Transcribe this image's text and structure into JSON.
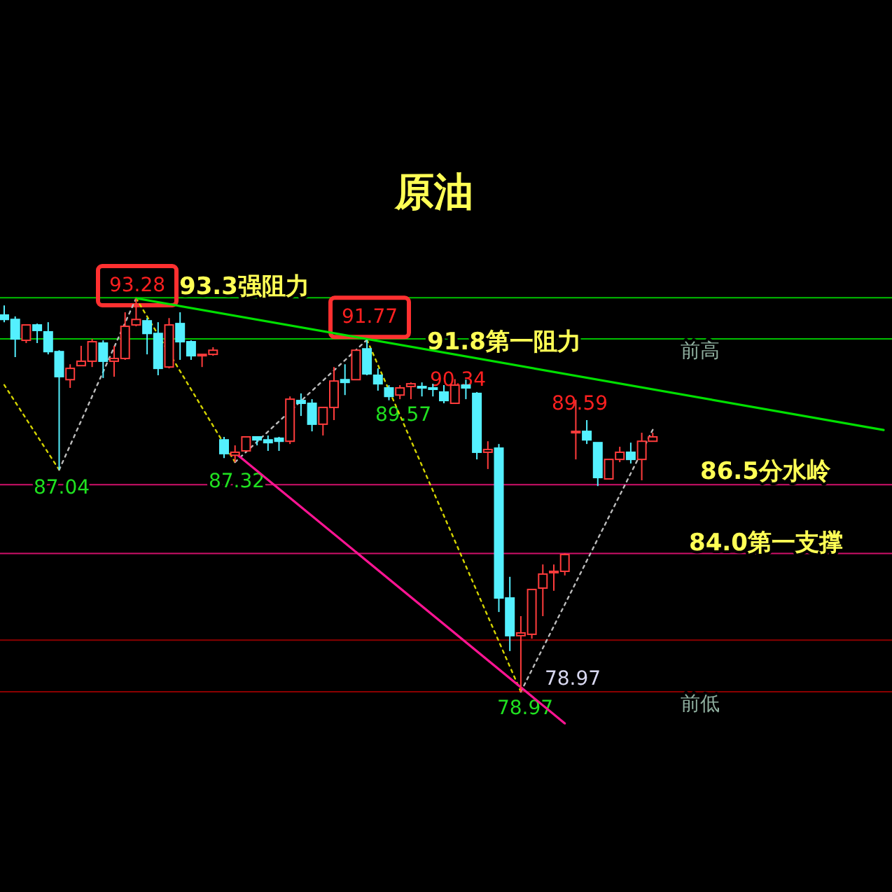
{
  "chart_data": {
    "type": "candlestick",
    "title": "原油",
    "categories": [
      null,
      null,
      null,
      null,
      null,
      null,
      null,
      null,
      null,
      null,
      null,
      null,
      null,
      null,
      null,
      null,
      null,
      null,
      null,
      null,
      null,
      null,
      null,
      null,
      null,
      null,
      null,
      null,
      null,
      null,
      null,
      null,
      null,
      null,
      null,
      null,
      null,
      null,
      null,
      null,
      null,
      null,
      null,
      null,
      null,
      null,
      null,
      null,
      null,
      null,
      null,
      null,
      null,
      null,
      null,
      null,
      null,
      null,
      null,
      null,
      null,
      null,
      null,
      null,
      null,
      null,
      null,
      null,
      null,
      null,
      null,
      null,
      null,
      null,
      null,
      null,
      null,
      null,
      null,
      null,
      null
    ],
    "ohlc": [
      [
        92.67,
        93.02,
        92.41,
        92.51
      ],
      [
        92.51,
        92.62,
        91.14,
        91.8
      ],
      [
        91.75,
        92.31,
        91.65,
        92.31
      ],
      [
        92.31,
        92.36,
        91.65,
        92.11
      ],
      [
        92.06,
        92.41,
        91.24,
        91.34
      ],
      [
        91.34,
        91.39,
        87.04,
        90.43
      ],
      [
        90.32,
        90.88,
        90.02,
        90.73
      ],
      [
        90.83,
        91.55,
        90.83,
        90.99
      ],
      [
        90.99,
        91.8,
        90.78,
        91.7
      ],
      [
        91.65,
        91.75,
        90.38,
        90.99
      ],
      [
        90.99,
        91.55,
        90.43,
        91.09
      ],
      [
        91.09,
        92.77,
        91.04,
        92.26
      ],
      [
        92.31,
        93.28,
        92.26,
        92.51
      ],
      [
        92.46,
        92.56,
        91.24,
        92.0
      ],
      [
        92.0,
        92.41,
        90.48,
        90.73
      ],
      [
        90.78,
        92.56,
        90.73,
        92.31
      ],
      [
        92.36,
        92.77,
        91.04,
        91.7
      ],
      [
        91.7,
        91.75,
        91.04,
        91.19
      ],
      [
        91.19,
        91.24,
        90.78,
        91.24
      ],
      [
        91.24,
        91.5,
        91.19,
        91.39
      ],
      [
        88.13,
        88.24,
        87.47,
        87.63
      ],
      [
        87.57,
        87.93,
        87.32,
        87.68
      ],
      [
        87.73,
        88.24,
        87.73,
        88.24
      ],
      [
        88.24,
        88.24,
        87.93,
        88.13
      ],
      [
        88.13,
        88.29,
        87.73,
        88.03
      ],
      [
        88.19,
        88.24,
        87.73,
        88.08
      ],
      [
        88.08,
        89.71,
        87.98,
        89.61
      ],
      [
        89.56,
        89.82,
        89.0,
        89.46
      ],
      [
        89.46,
        89.61,
        88.44,
        88.7
      ],
      [
        88.7,
        89.31,
        88.29,
        89.31
      ],
      [
        89.31,
        90.78,
        88.85,
        90.27
      ],
      [
        90.32,
        90.88,
        89.76,
        90.22
      ],
      [
        90.32,
        91.39,
        90.32,
        91.39
      ],
      [
        91.44,
        91.77,
        90.48,
        90.53
      ],
      [
        90.48,
        90.73,
        89.92,
        90.17
      ],
      [
        90.02,
        90.12,
        89.57,
        89.71
      ],
      [
        89.76,
        90.12,
        89.61,
        90.02
      ],
      [
        90.07,
        90.22,
        89.61,
        90.17
      ],
      [
        90.07,
        90.22,
        89.71,
        90.02
      ],
      [
        90.02,
        90.17,
        89.71,
        89.97
      ],
      [
        89.87,
        90.12,
        89.46,
        89.56
      ],
      [
        89.46,
        90.34,
        89.46,
        90.12
      ],
      [
        90.12,
        90.32,
        89.61,
        90.02
      ],
      [
        89.82,
        89.87,
        87.42,
        87.68
      ],
      [
        87.68,
        88.08,
        87.07,
        87.78
      ],
      [
        87.83,
        87.98,
        81.87,
        82.38
      ],
      [
        82.38,
        83.15,
        80.45,
        81.01
      ],
      [
        81.01,
        81.72,
        78.97,
        81.11
      ],
      [
        81.06,
        82.69,
        80.9,
        82.69
      ],
      [
        82.74,
        83.6,
        81.72,
        83.25
      ],
      [
        83.3,
        83.6,
        82.64,
        83.35
      ],
      [
        83.35,
        84.01,
        83.2,
        83.96
      ],
      [
        88.39,
        89.59,
        87.42,
        88.44
      ],
      [
        88.44,
        88.85,
        87.98,
        88.13
      ],
      [
        88.03,
        88.03,
        86.45,
        86.76
      ],
      [
        86.71,
        87.42,
        86.71,
        87.42
      ],
      [
        87.42,
        87.88,
        87.32,
        87.68
      ],
      [
        87.68,
        88.03,
        87.27,
        87.42
      ],
      [
        87.42,
        88.39,
        86.66,
        88.08
      ],
      [
        88.08,
        88.39,
        88.08,
        88.24
      ],
      null,
      null,
      null,
      null,
      null,
      null,
      null,
      null,
      null,
      null,
      null,
      null,
      null,
      null,
      null,
      null,
      null,
      null,
      null,
      null,
      null
    ],
    "series": [
      {
        "type": "line",
        "color": "#d4d400",
        "line_style": "dotted",
        "values": [
          90.13,
          null,
          null,
          null,
          null,
          87.04,
          null,
          null,
          null,
          null,
          null,
          null,
          null,
          null,
          null,
          null,
          null,
          null,
          null,
          null,
          null,
          null,
          null,
          null,
          null,
          null,
          null,
          null,
          null,
          null,
          null,
          null,
          null,
          null,
          null,
          null,
          null,
          null,
          null,
          null,
          null,
          null,
          null,
          null,
          null,
          null,
          null,
          null,
          null,
          null,
          null,
          null,
          null,
          null,
          null,
          null,
          null,
          null,
          null,
          null,
          null,
          null,
          null,
          null,
          null,
          null,
          null,
          null,
          null,
          null,
          null,
          null,
          null,
          null,
          null,
          null,
          null,
          null,
          null,
          null,
          null
        ]
      },
      {
        "type": "line",
        "color": "#bbbbbb",
        "line_style": "dotted",
        "values": [
          null,
          null,
          null,
          null,
          null,
          87.04,
          null,
          null,
          null,
          null,
          null,
          null,
          93.28,
          null,
          null,
          null,
          null,
          null,
          null,
          null,
          null,
          null,
          null,
          null,
          null,
          null,
          null,
          null,
          null,
          null,
          null,
          null,
          null,
          null,
          null,
          null,
          null,
          null,
          null,
          null,
          null,
          null,
          null,
          null,
          null,
          null,
          null,
          null,
          null,
          null,
          null,
          null,
          null,
          null,
          null,
          null,
          null,
          null,
          null,
          null,
          null,
          null,
          null,
          null,
          null,
          null,
          null,
          null,
          null,
          null,
          null,
          null,
          null,
          null,
          null,
          null,
          null,
          null,
          null,
          null,
          null
        ]
      },
      {
        "type": "line",
        "color": "#d4d400",
        "line_style": "dotted",
        "values": [
          null,
          null,
          null,
          null,
          null,
          null,
          null,
          null,
          null,
          null,
          null,
          null,
          93.28,
          null,
          null,
          null,
          null,
          null,
          null,
          null,
          null,
          87.32,
          null,
          null,
          null,
          null,
          null,
          null,
          null,
          null,
          null,
          null,
          null,
          null,
          null,
          null,
          null,
          null,
          null,
          null,
          null,
          null,
          null,
          null,
          null,
          null,
          null,
          null,
          null,
          null,
          null,
          null,
          null,
          null,
          null,
          null,
          null,
          null,
          null,
          null,
          null,
          null,
          null,
          null,
          null,
          null,
          null,
          null,
          null,
          null,
          null,
          null,
          null,
          null,
          null,
          null,
          null,
          null,
          null,
          null,
          null
        ]
      },
      {
        "type": "line",
        "color": "#bbbbbb",
        "line_style": "dotted",
        "values": [
          null,
          null,
          null,
          null,
          null,
          null,
          null,
          null,
          null,
          null,
          null,
          null,
          null,
          null,
          null,
          null,
          null,
          null,
          null,
          null,
          null,
          87.32,
          null,
          null,
          null,
          null,
          null,
          null,
          null,
          null,
          null,
          null,
          null,
          91.77,
          null,
          null,
          null,
          null,
          null,
          null,
          null,
          null,
          null,
          null,
          null,
          null,
          null,
          null,
          null,
          null,
          null,
          null,
          null,
          null,
          null,
          null,
          null,
          null,
          null,
          null,
          null,
          null,
          null,
          null,
          null,
          null,
          null,
          null,
          null,
          null,
          null,
          null,
          null,
          null,
          null,
          null,
          null,
          null,
          null,
          null,
          null
        ]
      },
      {
        "type": "line",
        "color": "#d4d400",
        "line_style": "dotted",
        "values": [
          null,
          null,
          null,
          null,
          null,
          null,
          null,
          null,
          null,
          null,
          null,
          null,
          null,
          null,
          null,
          null,
          null,
          null,
          null,
          null,
          null,
          null,
          null,
          null,
          null,
          null,
          null,
          null,
          null,
          null,
          null,
          null,
          null,
          91.77,
          null,
          null,
          null,
          null,
          null,
          null,
          null,
          null,
          null,
          null,
          null,
          null,
          null,
          78.97,
          null,
          null,
          null,
          null,
          null,
          null,
          null,
          null,
          null,
          null,
          null,
          null,
          null,
          null,
          null,
          null,
          null,
          null,
          null,
          null,
          null,
          null,
          null,
          null,
          null,
          null,
          null,
          null,
          null,
          null,
          null,
          null,
          null
        ]
      },
      {
        "type": "line",
        "color": "#bbbbbb",
        "line_style": "dotted",
        "values": [
          null,
          null,
          null,
          null,
          null,
          null,
          null,
          null,
          null,
          null,
          null,
          null,
          null,
          null,
          null,
          null,
          null,
          null,
          null,
          null,
          null,
          null,
          null,
          null,
          null,
          null,
          null,
          null,
          null,
          null,
          null,
          null,
          null,
          null,
          null,
          null,
          null,
          null,
          null,
          null,
          null,
          null,
          null,
          null,
          null,
          null,
          null,
          78.97,
          null,
          null,
          null,
          null,
          null,
          null,
          null,
          null,
          null,
          null,
          null,
          88.5,
          null,
          null,
          null,
          null,
          null,
          null,
          null,
          null,
          null,
          null,
          null,
          null,
          null,
          null,
          null,
          null,
          null,
          null,
          null,
          null,
          null
        ]
      },
      {
        "type": "line",
        "color": "#00e000",
        "line_style": "solid",
        "values": [
          null,
          null,
          null,
          null,
          null,
          null,
          null,
          null,
          null,
          null,
          null,
          null,
          93.28,
          null,
          null,
          null,
          null,
          null,
          null,
          null,
          null,
          null,
          null,
          null,
          null,
          null,
          null,
          null,
          null,
          null,
          null,
          null,
          null,
          null,
          null,
          null,
          null,
          null,
          null,
          null,
          null,
          null,
          null,
          null,
          null,
          null,
          null,
          null,
          null,
          null,
          null,
          null,
          null,
          null,
          null,
          null,
          null,
          null,
          null,
          null,
          null,
          null,
          null,
          null,
          null,
          null,
          null,
          null,
          null,
          null,
          null,
          null,
          null,
          null,
          null,
          null,
          null,
          null,
          null,
          null,
          88.49
        ]
      },
      {
        "type": "line",
        "color": "#ff1493",
        "line_style": "solid",
        "values": [
          null,
          null,
          null,
          null,
          null,
          null,
          null,
          null,
          null,
          null,
          null,
          null,
          null,
          null,
          null,
          null,
          null,
          null,
          null,
          null,
          null,
          87.66,
          null,
          null,
          null,
          null,
          null,
          null,
          null,
          null,
          null,
          null,
          null,
          null,
          null,
          null,
          null,
          null,
          null,
          null,
          null,
          null,
          null,
          null,
          null,
          null,
          null,
          null,
          null,
          null,
          null,
          77.82,
          null,
          null,
          null,
          null,
          null,
          null,
          null,
          null,
          null,
          null,
          null,
          null,
          null,
          null,
          null,
          null,
          null,
          null,
          null,
          null,
          null,
          null,
          null,
          null,
          null,
          null,
          null,
          null,
          null
        ]
      }
    ],
    "ref_lines": [
      {
        "axis": "y",
        "value": 93.3,
        "label": "93.3强阻力",
        "color": "#00c000"
      },
      {
        "axis": "y",
        "value": 91.8,
        "label": "91.8第一阻力",
        "color": "#00c000"
      },
      {
        "axis": "y",
        "value": 86.5,
        "label": "86.5分水岭",
        "color": "#d0106a"
      },
      {
        "axis": "y",
        "value": 84.0,
        "label": "84.0第一支撑",
        "color": "#d0106a"
      },
      {
        "axis": "y",
        "value": 80.85,
        "color": "#8b0000"
      },
      {
        "axis": "y",
        "value": 78.97,
        "color": "#8b0000"
      }
    ],
    "annotations": [
      {
        "text": "93.28",
        "y": 93.28
      },
      {
        "text": "87.04",
        "y": 87.04
      },
      {
        "text": "87.32",
        "y": 87.32
      },
      {
        "text": "91.77",
        "y": 91.77
      },
      {
        "text": "89.57",
        "y": 89.57
      },
      {
        "text": "90.34",
        "y": 90.34
      },
      {
        "text": "89.59",
        "y": 89.59
      },
      {
        "text": "78.97",
        "y": 78.97
      },
      {
        "text": "78.97",
        "y": 78.97
      },
      {
        "text": "前高",
        "y": 91.8
      },
      {
        "text": "前低",
        "y": 78.97
      }
    ]
  }
}
